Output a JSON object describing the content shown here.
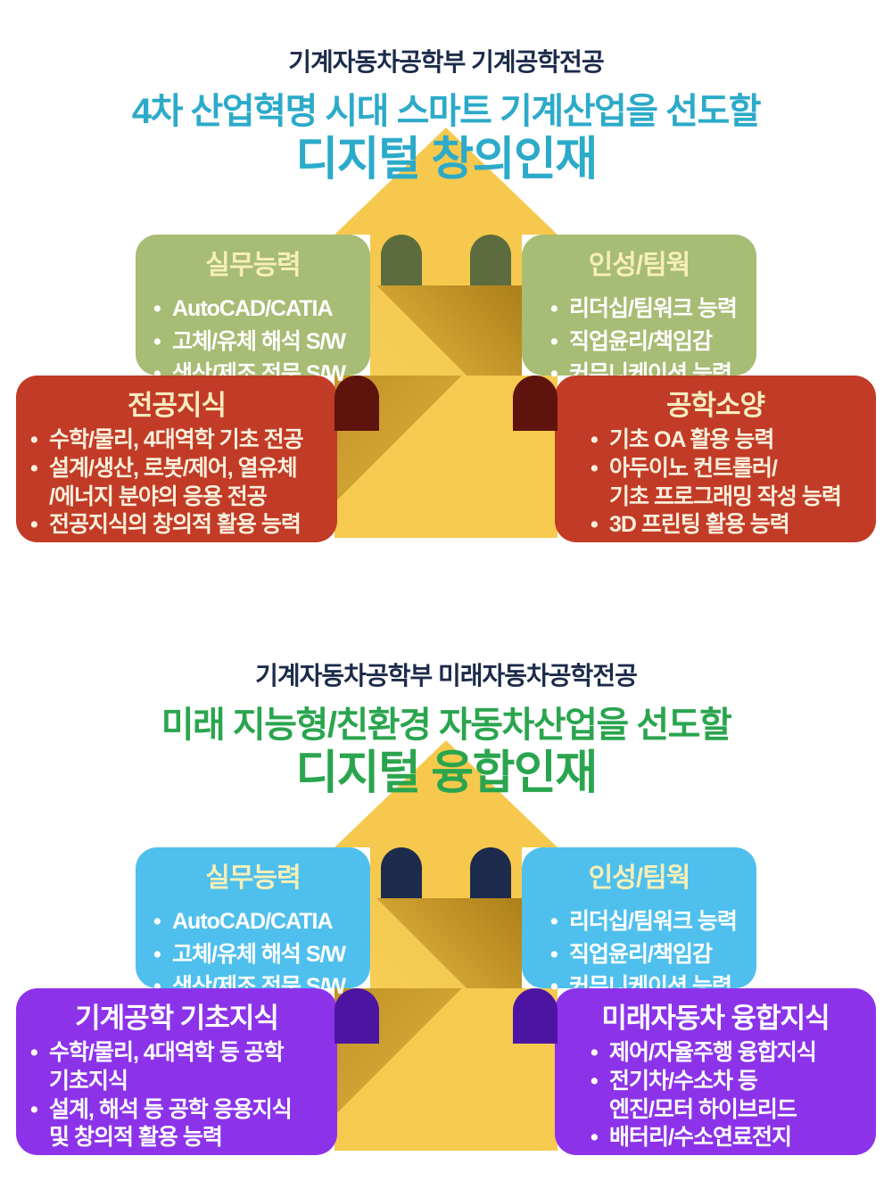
{
  "page": {
    "background": "#ffffff"
  },
  "colors": {
    "dept_title_text": "#1c2b4a",
    "arrow_yellow": "#f6c94e",
    "arrow_shade_dark": "#c39428",
    "section1": {
      "headline": "#2caac9",
      "top_box": "#a7bc74",
      "top_arch": "#5c6c3e",
      "bottom_box": "#c23b26",
      "bottom_arch": "#5e130d",
      "box_title_text": "#f6efb8",
      "bullet_text": "#ffffff"
    },
    "section2": {
      "headline": "#2aa54e",
      "top_box": "#4fc0ed",
      "top_arch": "#1d2b4c",
      "bottom_box": "#8c33ea",
      "bottom_arch": "#4c15a1",
      "box_title_text": "#f6efb8",
      "bullet_text": "#ffffff"
    }
  },
  "sections": [
    {
      "dept_title": "기계자동차공학부 기계공학전공",
      "headline_line1": "4차 산업혁명 시대 스마트 기계산업을 선도할",
      "headline_line2": "디지털 창의인재",
      "boxes": [
        {
          "title": "실무능력",
          "items": [
            "AutoCAD/CATIA",
            "고체/유체 해석 S/W",
            "생산/제조 전문 S/W"
          ]
        },
        {
          "title": "인성/팀웍",
          "items": [
            "리더십/팀워크 능력",
            "직업윤리/책임감",
            "커뮤니케이션 능력"
          ]
        },
        {
          "title": "전공지식",
          "items": [
            "수학/물리, 4대역학 기초 전공",
            "설계/생산, 로봇/제어, 열유체\n/에너지 분야의 응용 전공",
            "전공지식의 창의적 활용 능력"
          ]
        },
        {
          "title": "공학소양",
          "items": [
            "기초 OA 활용 능력",
            "아두이노 컨트롤러/\n기초 프로그래밍 작성 능력",
            "3D 프린팅 활용 능력"
          ]
        }
      ]
    },
    {
      "dept_title": "기계자동차공학부 미래자동차공학전공",
      "headline_line1": "미래 지능형/친환경 자동차산업을 선도할",
      "headline_line2": "디지털 융합인재",
      "boxes": [
        {
          "title": "실무능력",
          "items": [
            "AutoCAD/CATIA",
            "고체/유체 해석 S/W",
            "생산/제조 전문 S/W"
          ]
        },
        {
          "title": "인성/팀웍",
          "items": [
            "리더십/팀워크 능력",
            "직업윤리/책임감",
            "커뮤니케이션 능력"
          ]
        },
        {
          "title": "기계공학 기초지식",
          "items": [
            "수학/물리, 4대역학 등 공학\n기초지식",
            "설계, 해석 등 공학 응용지식\n및 창의적 활용 능력"
          ]
        },
        {
          "title": "미래자동차 융합지식",
          "items": [
            "제어/자율주행 융합지식",
            "전기차/수소차 등\n엔진/모터 하이브리드",
            "배터리/수소연료전지"
          ]
        }
      ]
    }
  ]
}
